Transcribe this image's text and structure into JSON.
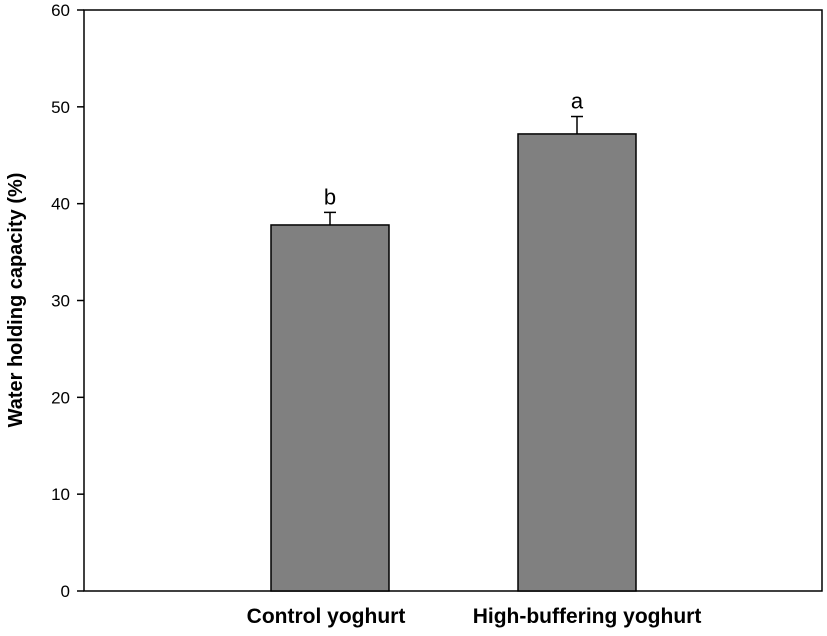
{
  "chart_data": {
    "type": "bar",
    "categories": [
      "Control yoghurt",
      "High-buffering yoghurt"
    ],
    "values": [
      37.8,
      47.2
    ],
    "errors": [
      1.3,
      1.8
    ],
    "significance_labels": [
      "b",
      "a"
    ],
    "ylabel": "Water holding capacity (%)",
    "xlabel": "",
    "ylim": [
      0,
      60
    ],
    "yticks": [
      0,
      10,
      20,
      30,
      40,
      50,
      60
    ],
    "bar_color": "#808080",
    "grid": false
  }
}
